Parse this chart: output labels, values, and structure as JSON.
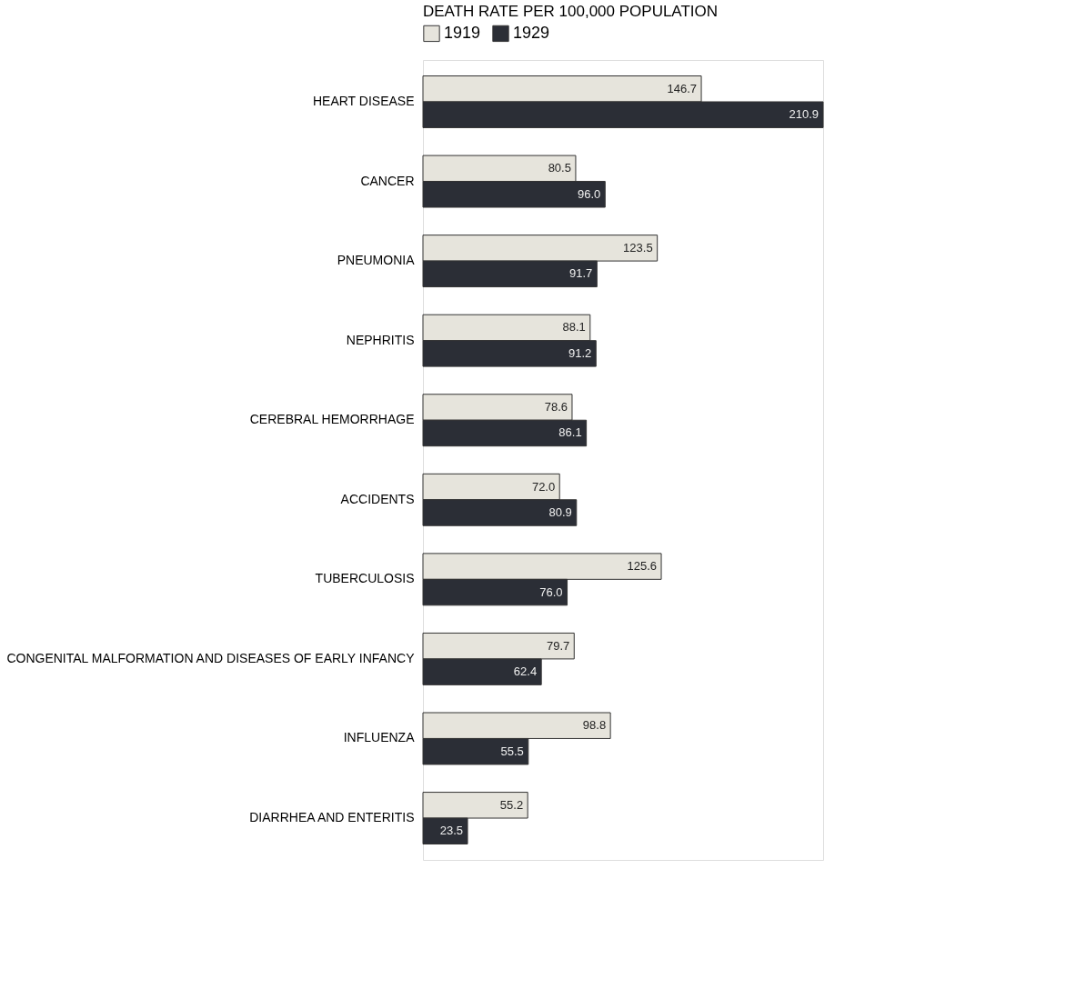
{
  "chart_data": {
    "type": "bar",
    "orientation": "horizontal",
    "legend_title": "DEATH RATE PER 100,000 POPULATION",
    "legend": "top",
    "categories": [
      "HEART DISEASE",
      "CANCER",
      "PNEUMONIA",
      "NEPHRITIS",
      "CEREBRAL HEMORRHAGE",
      "ACCIDENTS",
      "TUBERCULOSIS",
      "CONGENITAL MALFORMATION AND DISEASES OF EARLY INFANCY",
      "INFLUENZA",
      "DIARRHEA AND ENTERITIS"
    ],
    "series": [
      {
        "name": "1919",
        "color": "#e6e4dc",
        "values": [
          146.7,
          80.5,
          123.5,
          88.1,
          78.6,
          72.0,
          125.6,
          79.7,
          98.8,
          55.2
        ],
        "value_labels": [
          "146.7",
          "80.5",
          "123.5",
          "88.1",
          "78.6",
          "72.0",
          "125.6",
          "79.7",
          "98.8",
          "55.2"
        ]
      },
      {
        "name": "1929",
        "color": "#2b2e36",
        "values": [
          210.9,
          96.0,
          91.7,
          91.2,
          86.1,
          80.9,
          76.0,
          62.4,
          55.5,
          23.5
        ],
        "value_labels": [
          "210.9",
          "96.0",
          "91.7",
          "91.2",
          "86.1",
          "80.9",
          "76.0",
          "62.4",
          "55.5",
          "23.5"
        ]
      }
    ]
  }
}
